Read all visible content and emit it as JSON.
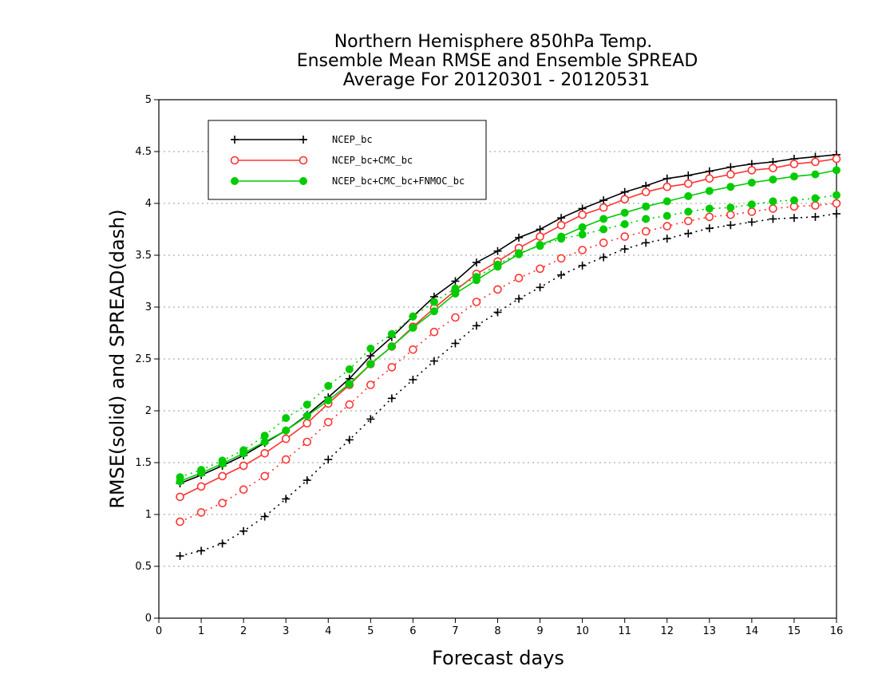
{
  "chart_data": {
    "type": "line",
    "title": [
      "Northern Hemisphere 850hPa Temp.",
      "Ensemble Mean RMSE and Ensemble SPREAD",
      "Average For 20120301 - 20120531"
    ],
    "xlabel": "Forecast days",
    "ylabel": "RMSE(solid) and SPREAD(dash)",
    "xlim": [
      0,
      16
    ],
    "ylim": [
      0,
      5
    ],
    "xticks": [
      "0",
      "1",
      "2",
      "3",
      "4",
      "5",
      "6",
      "7",
      "8",
      "9",
      "10",
      "11",
      "12",
      "13",
      "14",
      "15",
      "16"
    ],
    "yticks": [
      "0",
      "0.5",
      "1",
      "1.5",
      "2",
      "2.5",
      "3",
      "3.5",
      "4",
      "4.5",
      "5"
    ],
    "grid": "horizontal dotted",
    "legend_position": "top-left",
    "x": [
      0.5,
      1,
      1.5,
      2,
      2.5,
      3,
      3.5,
      4,
      4.5,
      5,
      5.5,
      6,
      6.5,
      7,
      7.5,
      8,
      8.5,
      9,
      9.5,
      10,
      10.5,
      11,
      11.5,
      12,
      12.5,
      13,
      13.5,
      14,
      14.5,
      15,
      15.5,
      16
    ],
    "series": [
      {
        "name": "NCEP_bc",
        "color": "#000000",
        "marker": "plus",
        "rmse": [
          1.3,
          1.38,
          1.47,
          1.57,
          1.69,
          1.81,
          1.96,
          2.13,
          2.31,
          2.53,
          2.71,
          2.91,
          3.1,
          3.25,
          3.43,
          3.54,
          3.67,
          3.75,
          3.86,
          3.95,
          4.03,
          4.11,
          4.17,
          4.24,
          4.27,
          4.31,
          4.35,
          4.38,
          4.4,
          4.43,
          4.45,
          4.47
        ],
        "spread": [
          0.6,
          0.65,
          0.72,
          0.84,
          0.98,
          1.15,
          1.33,
          1.53,
          1.72,
          1.92,
          2.12,
          2.3,
          2.48,
          2.65,
          2.82,
          2.95,
          3.08,
          3.19,
          3.31,
          3.4,
          3.48,
          3.56,
          3.62,
          3.66,
          3.71,
          3.76,
          3.79,
          3.82,
          3.85,
          3.86,
          3.87,
          3.9
        ]
      },
      {
        "name": "NCEP_bc+CMC_bc",
        "color": "#ff3333",
        "marker": "open-circle",
        "rmse": [
          1.17,
          1.27,
          1.37,
          1.47,
          1.59,
          1.73,
          1.88,
          2.07,
          2.25,
          2.45,
          2.62,
          2.81,
          2.99,
          3.16,
          3.32,
          3.44,
          3.57,
          3.68,
          3.79,
          3.89,
          3.96,
          4.04,
          4.11,
          4.16,
          4.19,
          4.24,
          4.28,
          4.32,
          4.34,
          4.38,
          4.4,
          4.43
        ],
        "spread": [
          0.93,
          1.02,
          1.11,
          1.24,
          1.37,
          1.53,
          1.7,
          1.89,
          2.06,
          2.25,
          2.42,
          2.59,
          2.76,
          2.9,
          3.05,
          3.17,
          3.28,
          3.37,
          3.47,
          3.55,
          3.62,
          3.68,
          3.73,
          3.78,
          3.83,
          3.87,
          3.89,
          3.92,
          3.95,
          3.97,
          3.98,
          4.0
        ]
      },
      {
        "name": "NCEP_bc+CMC_bc+FNMOC_bc",
        "color": "#00cc00",
        "marker": "filled-circle",
        "rmse": [
          1.32,
          1.4,
          1.49,
          1.59,
          1.7,
          1.81,
          1.95,
          2.1,
          2.26,
          2.45,
          2.62,
          2.8,
          2.96,
          3.13,
          3.26,
          3.39,
          3.51,
          3.6,
          3.68,
          3.77,
          3.85,
          3.91,
          3.97,
          4.02,
          4.07,
          4.12,
          4.16,
          4.2,
          4.23,
          4.26,
          4.28,
          4.32
        ],
        "spread": [
          1.36,
          1.43,
          1.52,
          1.62,
          1.76,
          1.93,
          2.06,
          2.24,
          2.4,
          2.6,
          2.74,
          2.91,
          3.05,
          3.18,
          3.29,
          3.41,
          3.52,
          3.59,
          3.66,
          3.7,
          3.75,
          3.8,
          3.85,
          3.88,
          3.92,
          3.95,
          3.96,
          3.99,
          4.02,
          4.03,
          4.05,
          4.08
        ]
      }
    ]
  }
}
